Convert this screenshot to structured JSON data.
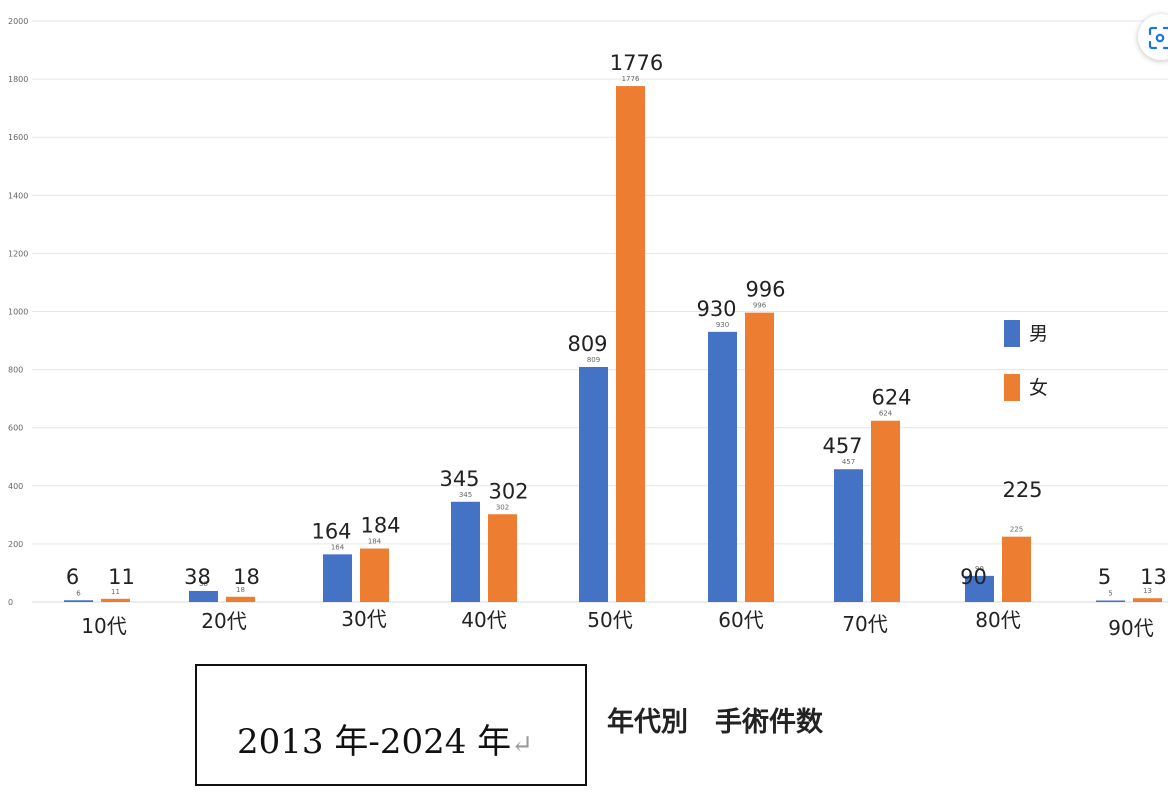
{
  "chart_data": {
    "type": "bar",
    "categories": [
      "10代",
      "20代",
      "30代",
      "40代",
      "50代",
      "60代",
      "70代",
      "80代",
      "90代"
    ],
    "series": [
      {
        "name": "男",
        "color": "#4472c4",
        "values": [
          6,
          38,
          164,
          345,
          809,
          930,
          457,
          90,
          5
        ]
      },
      {
        "name": "女",
        "color": "#ed7d31",
        "values": [
          11,
          18,
          184,
          302,
          1776,
          996,
          624,
          225,
          13
        ]
      }
    ],
    "yticks": [
      "0",
      "200",
      "400",
      "600",
      "800",
      "1000",
      "1200",
      "1400",
      "1600",
      "1800",
      "2000"
    ],
    "ylim": [
      0,
      2000
    ],
    "grid": true,
    "legend": "right"
  },
  "period_label": "2013 年-2024 年",
  "return_mark": "↵",
  "caption": "年代別　手術件数",
  "corner_button": {
    "icon": "scan-icon"
  }
}
